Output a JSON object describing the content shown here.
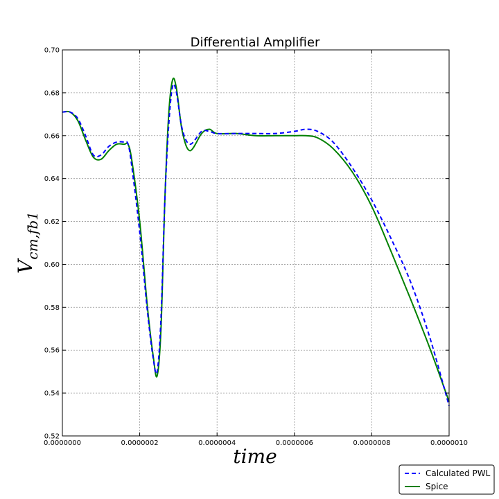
{
  "chart_data": {
    "type": "line",
    "title": "Differential Amplifier",
    "xlabel": "time",
    "ylabel_main": "V",
    "ylabel_sub": "cm,fb1",
    "xlim": [
      0,
      1e-06
    ],
    "ylim": [
      0.52,
      0.7
    ],
    "x_ticks": [
      "0.0000000",
      "0.0000002",
      "0.0000004",
      "0.0000006",
      "0.0000008",
      "0.0000010"
    ],
    "y_ticks": [
      "0.52",
      "0.54",
      "0.56",
      "0.58",
      "0.60",
      "0.62",
      "0.64",
      "0.66",
      "0.68",
      "0.70"
    ],
    "grid": true,
    "legend_position": "bottom-right",
    "series": [
      {
        "name": "Calculated PWL",
        "color": "#0000ff",
        "style": "dashed",
        "x": [
          0,
          2e-08,
          4e-08,
          6e-08,
          8e-08,
          1e-07,
          1.2e-07,
          1.4e-07,
          1.6e-07,
          1.7e-07,
          1.8e-07,
          2e-07,
          2.2e-07,
          2.35e-07,
          2.45e-07,
          2.55e-07,
          2.65e-07,
          2.75e-07,
          2.85e-07,
          2.95e-07,
          3.1e-07,
          3.3e-07,
          3.6e-07,
          3.8e-07,
          4e-07,
          4.5e-07,
          5e-07,
          5.5e-07,
          6e-07,
          6.3e-07,
          6.6e-07,
          7e-07,
          7.5e-07,
          8e-07,
          8.5e-07,
          9e-07,
          9.5e-07,
          1e-06
        ],
        "values": [
          0.671,
          0.671,
          0.668,
          0.66,
          0.651,
          0.651,
          0.655,
          0.657,
          0.657,
          0.656,
          0.645,
          0.615,
          0.578,
          0.556,
          0.55,
          0.575,
          0.63,
          0.665,
          0.683,
          0.68,
          0.663,
          0.656,
          0.662,
          0.662,
          0.661,
          0.661,
          0.661,
          0.661,
          0.662,
          0.663,
          0.662,
          0.657,
          0.645,
          0.63,
          0.612,
          0.592,
          0.566,
          0.534
        ]
      },
      {
        "name": "Spice",
        "color": "#008000",
        "style": "solid",
        "x": [
          0,
          2e-08,
          4e-08,
          6e-08,
          8e-08,
          1e-07,
          1.2e-07,
          1.4e-07,
          1.6e-07,
          1.7e-07,
          1.8e-07,
          2e-07,
          2.2e-07,
          2.35e-07,
          2.45e-07,
          2.55e-07,
          2.65e-07,
          2.75e-07,
          2.85e-07,
          2.95e-07,
          3.1e-07,
          3.3e-07,
          3.6e-07,
          3.8e-07,
          4e-07,
          4.5e-07,
          5e-07,
          5.5e-07,
          6e-07,
          6.3e-07,
          6.6e-07,
          7e-07,
          7.5e-07,
          8e-07,
          8.5e-07,
          9e-07,
          9.5e-07,
          1e-06
        ],
        "values": [
          0.671,
          0.671,
          0.667,
          0.658,
          0.65,
          0.649,
          0.653,
          0.656,
          0.656,
          0.656,
          0.648,
          0.62,
          0.58,
          0.557,
          0.548,
          0.57,
          0.63,
          0.67,
          0.686,
          0.682,
          0.662,
          0.653,
          0.661,
          0.663,
          0.661,
          0.661,
          0.66,
          0.66,
          0.66,
          0.66,
          0.659,
          0.654,
          0.643,
          0.627,
          0.606,
          0.584,
          0.561,
          0.536
        ]
      }
    ]
  }
}
